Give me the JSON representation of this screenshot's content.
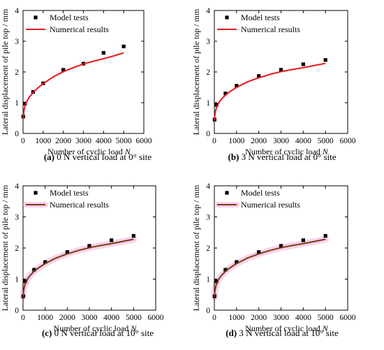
{
  "chart_data": [
    {
      "type": "scatter",
      "panel": "(a)",
      "caption": "0 N vertical load at 0° site",
      "xlabel": "Number of cyclic load",
      "xlabel_var": "N",
      "ylabel": "Lateral displacement of pile top / mm",
      "xlim": [
        0,
        6000
      ],
      "ylim": [
        0,
        4
      ],
      "xticks": [
        "0",
        "1000",
        "2000",
        "3000",
        "4000",
        "5000",
        "6000"
      ],
      "yticks": [
        "0",
        "1",
        "2",
        "3",
        "4"
      ],
      "legend_placement": "top-left",
      "series": [
        {
          "name": "Model tests",
          "kind": "points",
          "color": "#000000",
          "x": [
            10,
            100,
            500,
            1000,
            2000,
            3000,
            4000,
            5000
          ],
          "y": [
            0.55,
            0.97,
            1.35,
            1.63,
            2.07,
            2.27,
            2.62,
            2.83
          ]
        },
        {
          "name": "Numerical results",
          "kind": "line",
          "color": "#e8161b",
          "x": [
            1,
            25,
            50,
            100,
            200,
            300,
            500,
            700,
            1000,
            1500,
            2000,
            2500,
            3000,
            3500,
            4000,
            4500,
            5000
          ],
          "y": [
            0.47,
            0.62,
            0.76,
            0.9,
            1.06,
            1.17,
            1.33,
            1.46,
            1.62,
            1.84,
            2.01,
            2.14,
            2.26,
            2.35,
            2.43,
            2.52,
            2.62
          ]
        }
      ]
    },
    {
      "type": "scatter",
      "panel": "(b)",
      "caption": "3 N vertical load at 0° site",
      "xlabel": "Number of cyclic load",
      "xlabel_var": "N",
      "ylabel": "Lateral displacement of pile top / mm",
      "xlim": [
        0,
        6000
      ],
      "ylim": [
        0,
        4
      ],
      "xticks": [
        "0",
        "1000",
        "2000",
        "3000",
        "4000",
        "5000",
        "6000"
      ],
      "yticks": [
        "0",
        "1",
        "2",
        "3",
        "4"
      ],
      "legend_placement": "top-left",
      "series": [
        {
          "name": "Model tests",
          "kind": "points",
          "color": "#000000",
          "x": [
            10,
            100,
            500,
            1000,
            2000,
            3000,
            4000,
            5000
          ],
          "y": [
            0.45,
            0.93,
            1.3,
            1.55,
            1.87,
            2.07,
            2.25,
            2.39
          ]
        },
        {
          "name": "Numerical results",
          "kind": "line",
          "color": "#e8161b",
          "x": [
            1,
            25,
            50,
            100,
            200,
            300,
            500,
            700,
            1000,
            1500,
            2000,
            2500,
            3000,
            3500,
            4000,
            4500,
            5000
          ],
          "y": [
            0.42,
            0.6,
            0.72,
            0.85,
            1.0,
            1.1,
            1.25,
            1.36,
            1.5,
            1.68,
            1.81,
            1.92,
            2.01,
            2.08,
            2.14,
            2.21,
            2.28
          ]
        }
      ]
    },
    {
      "type": "scatter",
      "panel": "(c)",
      "caption": "0 N vertical load at 10° site",
      "xlabel": "Number of cyclic load",
      "xlabel_var": "N",
      "ylabel": "Lateral displacement of pile top / mm",
      "xlim": [
        0,
        6000
      ],
      "ylim": [
        0,
        4
      ],
      "xticks": [
        "0",
        "1000",
        "2000",
        "3000",
        "4000",
        "5000",
        "6000"
      ],
      "yticks": [
        "0",
        "1",
        "2",
        "3",
        "4"
      ],
      "legend_placement": "top-left",
      "series": [
        {
          "name": "Model tests",
          "kind": "points",
          "color": "#000000",
          "x": [
            10,
            100,
            500,
            1000,
            2000,
            3000,
            4000,
            5000
          ],
          "y": [
            0.45,
            0.93,
            1.3,
            1.55,
            1.87,
            2.07,
            2.25,
            2.39
          ]
        },
        {
          "name": "Numerical results",
          "kind": "line",
          "color": "#7b3a10",
          "band": "#f6c9ea",
          "x": [
            1,
            25,
            50,
            100,
            200,
            300,
            500,
            700,
            1000,
            1500,
            2000,
            2500,
            3000,
            3500,
            4000,
            4500,
            5000
          ],
          "y": [
            0.42,
            0.6,
            0.72,
            0.85,
            1.0,
            1.1,
            1.25,
            1.36,
            1.5,
            1.68,
            1.81,
            1.92,
            2.01,
            2.08,
            2.14,
            2.21,
            2.28
          ]
        }
      ]
    },
    {
      "type": "scatter",
      "panel": "(d)",
      "caption": "3 N vertical load at 10° site",
      "xlabel": "Number of cyclic load",
      "xlabel_var": "N",
      "ylabel": "Lateral displacement of pile top / mm",
      "xlim": [
        0,
        6000
      ],
      "ylim": [
        0,
        4
      ],
      "xticks": [
        "0",
        "1000",
        "2000",
        "3000",
        "4000",
        "5000",
        "6000"
      ],
      "yticks": [
        "0",
        "1",
        "2",
        "3",
        "4"
      ],
      "legend_placement": "top-left",
      "series": [
        {
          "name": "Model tests",
          "kind": "points",
          "color": "#000000",
          "x": [
            10,
            100,
            500,
            1000,
            2000,
            3000,
            4000,
            5000
          ],
          "y": [
            0.45,
            0.93,
            1.3,
            1.55,
            1.87,
            2.07,
            2.25,
            2.39
          ]
        },
        {
          "name": "Numerical results",
          "kind": "line",
          "color": "#7b3a10",
          "band": "#f6c9ea",
          "x": [
            1,
            25,
            50,
            100,
            200,
            300,
            500,
            700,
            1000,
            1500,
            2000,
            2500,
            3000,
            3500,
            4000,
            4500,
            5000
          ],
          "y": [
            0.42,
            0.6,
            0.72,
            0.85,
            1.0,
            1.1,
            1.25,
            1.36,
            1.5,
            1.68,
            1.81,
            1.92,
            2.01,
            2.08,
            2.14,
            2.21,
            2.28
          ]
        }
      ]
    }
  ]
}
